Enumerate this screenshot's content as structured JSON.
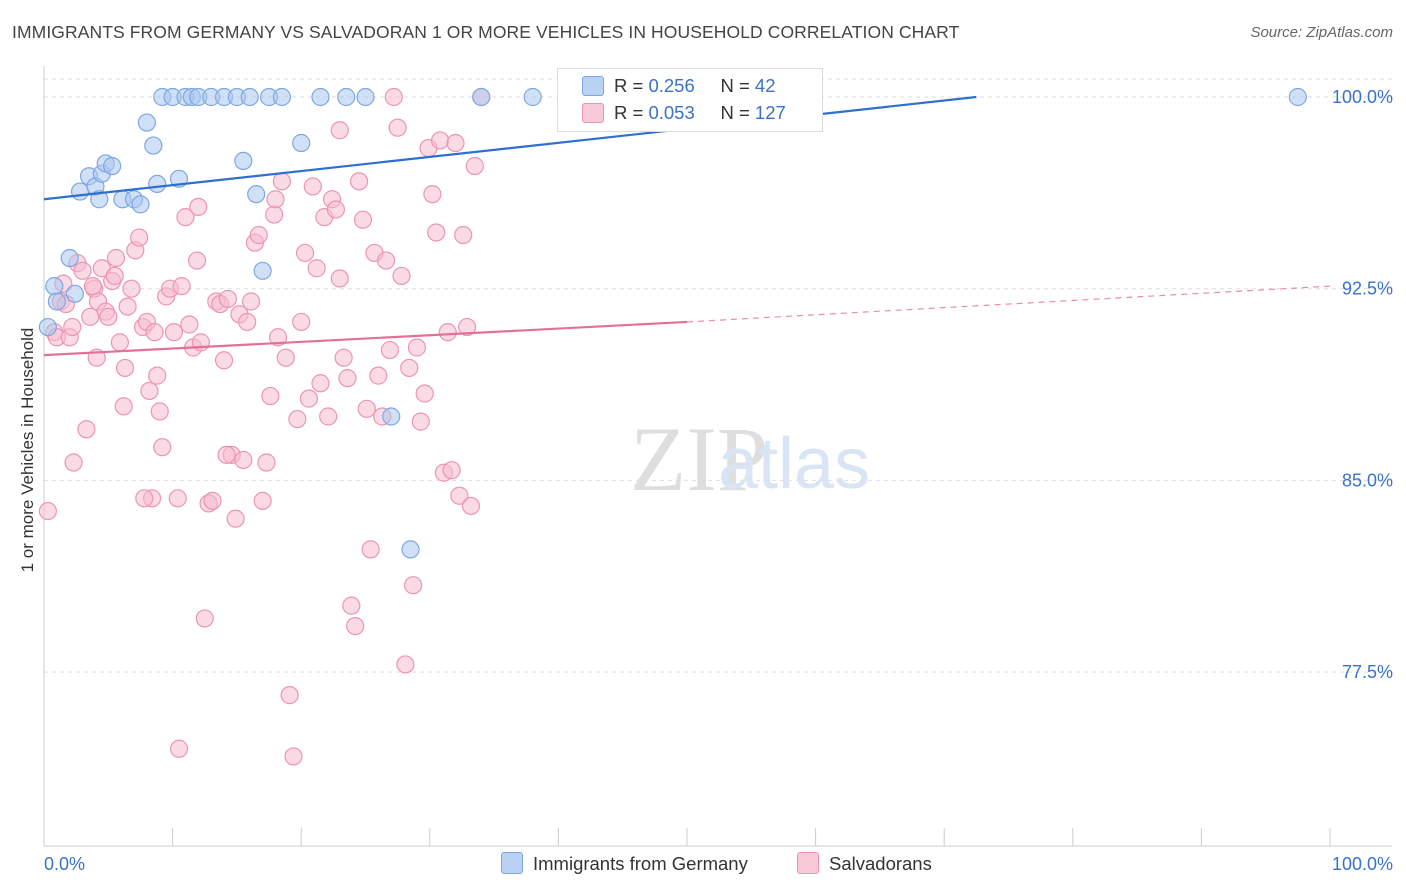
{
  "header": {
    "title": "IMMIGRANTS FROM GERMANY VS SALVADORAN 1 OR MORE VEHICLES IN HOUSEHOLD CORRELATION CHART",
    "source": "Source: ZipAtlas.com"
  },
  "watermark": {
    "zip": "ZIP",
    "atlas": "atlas"
  },
  "legend_stats": [
    {
      "r_label": "R =",
      "r_value": "0.256",
      "n_label": "N =",
      "n_value": "42"
    },
    {
      "r_label": "R =",
      "r_value": "0.053",
      "n_label": "N =",
      "n_value": "127"
    }
  ],
  "chart_data": {
    "type": "scatter",
    "title": "IMMIGRANTS FROM GERMANY VS SALVADORAN 1 OR MORE VEHICLES IN HOUSEHOLD CORRELATION CHART",
    "xlabel": "",
    "ylabel": "1 or more Vehicles in Household",
    "xlim": [
      0,
      100
    ],
    "ylim": [
      70.5,
      101.2
    ],
    "x_tick_labels": [
      "0.0%",
      "100.0%"
    ],
    "y_tick_values": [
      77.5,
      85.0,
      92.5,
      100.0
    ],
    "y_tick_labels": [
      "77.5%",
      "85.0%",
      "92.5%",
      "100.0%"
    ],
    "grid": true,
    "legend_position": "bottom",
    "colors": {
      "germany_fill": "#a9c6ef",
      "germany_stroke": "#7ea7e0",
      "germany_line": "#2f6fcf",
      "salvadoran_fill": "#f6bccf",
      "salvadoran_stroke": "#ee94b2",
      "salvadoran_line": "#e4709a",
      "tick_label": "#3a72c8",
      "grid": "#dddddd"
    },
    "series": [
      {
        "name": "Immigrants from Germany",
        "color": "#a9c6ef",
        "r": 0.256,
        "n": 42,
        "trend": {
          "x": [
            0,
            72.5
          ],
          "y": [
            96.0,
            100.0
          ]
        },
        "points": [
          [
            0.3,
            91.0
          ],
          [
            0.8,
            92.6
          ],
          [
            1.0,
            92.0
          ],
          [
            2.0,
            93.7
          ],
          [
            2.4,
            92.3
          ],
          [
            2.8,
            96.3
          ],
          [
            3.5,
            96.9
          ],
          [
            4.0,
            96.5
          ],
          [
            4.3,
            96.0
          ],
          [
            4.5,
            97.0
          ],
          [
            4.8,
            97.4
          ],
          [
            5.3,
            97.3
          ],
          [
            6.1,
            96.0
          ],
          [
            7.0,
            96.0
          ],
          [
            7.5,
            95.8
          ],
          [
            8.0,
            99.0
          ],
          [
            8.5,
            98.1
          ],
          [
            8.8,
            96.6
          ],
          [
            9.2,
            100.0
          ],
          [
            10.0,
            100.0
          ],
          [
            10.5,
            96.8
          ],
          [
            11.0,
            100.0
          ],
          [
            11.5,
            100.0
          ],
          [
            12.0,
            100.0
          ],
          [
            13.0,
            100.0
          ],
          [
            14.0,
            100.0
          ],
          [
            15.0,
            100.0
          ],
          [
            16.0,
            100.0
          ],
          [
            17.0,
            93.2
          ],
          [
            15.5,
            97.5
          ],
          [
            16.5,
            96.2
          ],
          [
            17.5,
            100.0
          ],
          [
            18.5,
            100.0
          ],
          [
            20.0,
            98.2
          ],
          [
            21.5,
            100.0
          ],
          [
            23.5,
            100.0
          ],
          [
            25.0,
            100.0
          ],
          [
            27.0,
            87.5
          ],
          [
            28.5,
            82.3
          ],
          [
            34.0,
            100.0
          ],
          [
            38.0,
            100.0
          ],
          [
            97.5,
            100.0
          ]
        ]
      },
      {
        "name": "Salvadorans",
        "color": "#f6bccf",
        "r": 0.053,
        "n": 127,
        "trend": {
          "x": [
            0,
            50
          ],
          "y": [
            89.9,
            91.2
          ]
        },
        "trend_extension": {
          "x": [
            50,
            100
          ],
          "y": [
            91.2,
            92.6
          ]
        },
        "points": [
          [
            0.3,
            83.8
          ],
          [
            0.8,
            90.8
          ],
          [
            1.0,
            90.6
          ],
          [
            1.3,
            92.0
          ],
          [
            1.5,
            92.7
          ],
          [
            1.7,
            91.9
          ],
          [
            2.0,
            90.6
          ],
          [
            2.3,
            85.7
          ],
          [
            2.6,
            93.5
          ],
          [
            3.0,
            93.2
          ],
          [
            3.3,
            87.0
          ],
          [
            3.6,
            91.4
          ],
          [
            3.9,
            92.5
          ],
          [
            4.2,
            92.0
          ],
          [
            4.5,
            93.3
          ],
          [
            4.8,
            91.6
          ],
          [
            5.0,
            91.4
          ],
          [
            5.3,
            92.8
          ],
          [
            5.6,
            93.7
          ],
          [
            5.9,
            90.4
          ],
          [
            6.2,
            87.9
          ],
          [
            6.5,
            91.8
          ],
          [
            6.8,
            92.5
          ],
          [
            7.1,
            94.0
          ],
          [
            7.4,
            94.5
          ],
          [
            7.7,
            91.0
          ],
          [
            8.0,
            91.2
          ],
          [
            8.2,
            88.5
          ],
          [
            8.4,
            84.3
          ],
          [
            8.6,
            90.8
          ],
          [
            8.8,
            89.1
          ],
          [
            9.0,
            87.7
          ],
          [
            9.2,
            86.3
          ],
          [
            9.5,
            92.2
          ],
          [
            9.8,
            92.5
          ],
          [
            10.1,
            90.8
          ],
          [
            10.4,
            84.3
          ],
          [
            10.7,
            92.6
          ],
          [
            11.0,
            95.3
          ],
          [
            11.3,
            91.1
          ],
          [
            11.6,
            90.2
          ],
          [
            11.9,
            93.6
          ],
          [
            12.2,
            90.4
          ],
          [
            12.5,
            79.6
          ],
          [
            12.8,
            84.1
          ],
          [
            13.1,
            84.2
          ],
          [
            13.4,
            92.0
          ],
          [
            13.7,
            91.9
          ],
          [
            14.0,
            89.7
          ],
          [
            14.3,
            92.1
          ],
          [
            14.6,
            86.0
          ],
          [
            14.9,
            83.5
          ],
          [
            15.2,
            91.5
          ],
          [
            15.5,
            85.8
          ],
          [
            15.8,
            91.2
          ],
          [
            16.1,
            92.0
          ],
          [
            16.4,
            94.3
          ],
          [
            16.7,
            94.6
          ],
          [
            17.0,
            84.2
          ],
          [
            17.3,
            85.7
          ],
          [
            17.6,
            88.3
          ],
          [
            17.9,
            95.4
          ],
          [
            18.2,
            90.6
          ],
          [
            18.5,
            96.7
          ],
          [
            18.8,
            89.8
          ],
          [
            19.1,
            76.6
          ],
          [
            19.4,
            74.2
          ],
          [
            19.7,
            87.4
          ],
          [
            20.0,
            91.2
          ],
          [
            20.3,
            93.9
          ],
          [
            20.6,
            88.2
          ],
          [
            20.9,
            96.5
          ],
          [
            21.2,
            93.3
          ],
          [
            21.5,
            88.8
          ],
          [
            21.8,
            95.3
          ],
          [
            22.1,
            87.5
          ],
          [
            22.4,
            96.0
          ],
          [
            22.7,
            95.6
          ],
          [
            23.0,
            92.9
          ],
          [
            23.3,
            89.8
          ],
          [
            23.6,
            89.0
          ],
          [
            23.9,
            80.1
          ],
          [
            24.2,
            79.3
          ],
          [
            24.5,
            96.7
          ],
          [
            24.8,
            95.2
          ],
          [
            25.1,
            87.8
          ],
          [
            25.4,
            82.3
          ],
          [
            25.7,
            93.9
          ],
          [
            26.0,
            89.1
          ],
          [
            26.3,
            87.5
          ],
          [
            26.6,
            93.6
          ],
          [
            26.9,
            90.1
          ],
          [
            27.2,
            100.0
          ],
          [
            27.5,
            98.8
          ],
          [
            27.8,
            93.0
          ],
          [
            28.1,
            77.8
          ],
          [
            28.4,
            89.4
          ],
          [
            28.7,
            80.9
          ],
          [
            29.0,
            90.2
          ],
          [
            29.3,
            87.3
          ],
          [
            29.6,
            88.4
          ],
          [
            29.9,
            98.0
          ],
          [
            30.2,
            96.2
          ],
          [
            30.5,
            94.7
          ],
          [
            30.8,
            98.3
          ],
          [
            31.1,
            85.3
          ],
          [
            31.4,
            90.8
          ],
          [
            31.7,
            85.4
          ],
          [
            32.0,
            98.2
          ],
          [
            32.3,
            84.4
          ],
          [
            32.6,
            94.6
          ],
          [
            32.9,
            91.0
          ],
          [
            33.2,
            84.0
          ],
          [
            33.5,
            97.3
          ],
          [
            34.0,
            100.0
          ],
          [
            14.2,
            86.0
          ],
          [
            10.5,
            74.5
          ],
          [
            6.3,
            89.4
          ],
          [
            4.1,
            89.8
          ],
          [
            5.5,
            93.0
          ],
          [
            7.8,
            84.3
          ],
          [
            3.8,
            92.6
          ],
          [
            2.2,
            91.0
          ],
          [
            12.0,
            95.7
          ],
          [
            18.0,
            96.0
          ],
          [
            23.0,
            98.7
          ]
        ]
      }
    ]
  },
  "bottom_legend": {
    "germany_label": "Immigrants from Germany",
    "salvadoran_label": "Salvadorans"
  }
}
